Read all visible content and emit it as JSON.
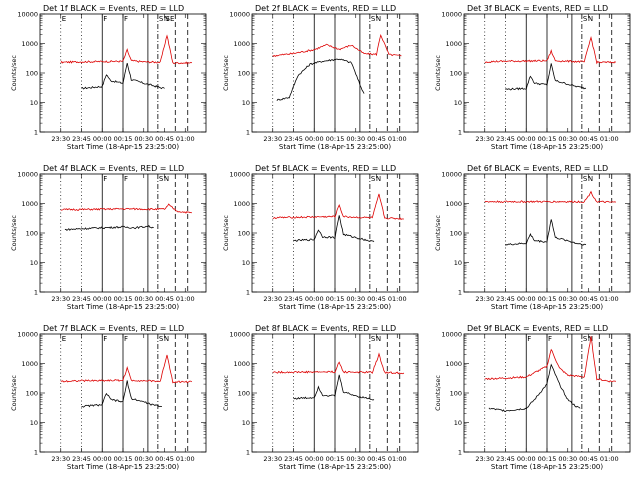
{
  "figure": {
    "xlabel": "Start Time (18-Apr-15 23:25:00)",
    "ylabel": "Counts/sec",
    "x_ticks": [
      "23:30",
      "23:45",
      "00:00",
      "00:15",
      "00:30",
      "00:45",
      "01:00"
    ],
    "y_ticks": [
      "1",
      "10",
      "100",
      "1000",
      "10000"
    ],
    "event_color": "#000000",
    "lld_color": "#dd0000"
  },
  "chart_data": [
    {
      "type": "line",
      "title": "Det 1f BLACK = Events, RED = LLD",
      "ylim": [
        1,
        10000
      ],
      "series": [
        {
          "name": "Events",
          "color": "#000000",
          "t": [
            23.75,
            24.0,
            24.05,
            24.1,
            24.25,
            24.3,
            24.35,
            24.5,
            24.6,
            24.7,
            24.75
          ],
          "values": [
            30,
            35,
            90,
            55,
            45,
            220,
            60,
            45,
            38,
            32,
            30
          ]
        },
        {
          "name": "LLD",
          "color": "#dd0000",
          "t": [
            23.5,
            23.75,
            24.25,
            24.3,
            24.35,
            24.5,
            24.7,
            24.78,
            24.85,
            25.0,
            25.08
          ],
          "values": [
            230,
            240,
            250,
            600,
            260,
            240,
            230,
            1900,
            220,
            220,
            220
          ]
        }
      ],
      "markers": [
        {
          "label": "E",
          "t": 23.5
        },
        {
          "label": "F",
          "t": 24.0
        },
        {
          "label": "F",
          "t": 24.25
        },
        {
          "label": "S",
          "t": 24.67
        },
        {
          "label": "N",
          "t": 24.73
        },
        {
          "label": "SE",
          "t": 24.75
        }
      ]
    },
    {
      "type": "line",
      "title": "Det 2f BLACK = Events, RED = LLD",
      "ylim": [
        1,
        10000
      ],
      "series": [
        {
          "name": "Events",
          "color": "#000000",
          "t": [
            23.55,
            23.7,
            23.8,
            23.95,
            24.1,
            24.3,
            24.45,
            24.55,
            24.6
          ],
          "values": [
            12,
            15,
            80,
            200,
            250,
            300,
            220,
            40,
            20
          ]
        },
        {
          "name": "LLD",
          "color": "#dd0000",
          "t": [
            23.5,
            23.75,
            24.0,
            24.15,
            24.3,
            24.45,
            24.6,
            24.75,
            24.8,
            24.9,
            25.05
          ],
          "values": [
            380,
            460,
            620,
            900,
            640,
            880,
            450,
            430,
            2000,
            420,
            380
          ]
        }
      ],
      "markers": [
        {
          "label": "S",
          "t": 24.67
        },
        {
          "label": "N",
          "t": 24.73
        }
      ]
    },
    {
      "type": "line",
      "title": "Det 3f BLACK = Events, RED = LLD",
      "ylim": [
        1,
        10000
      ],
      "series": [
        {
          "name": "Events",
          "color": "#000000",
          "t": [
            23.75,
            24.0,
            24.05,
            24.1,
            24.25,
            24.3,
            24.35,
            24.5,
            24.6,
            24.72
          ],
          "values": [
            28,
            30,
            80,
            45,
            40,
            200,
            55,
            42,
            35,
            30
          ]
        },
        {
          "name": "LLD",
          "color": "#dd0000",
          "t": [
            23.5,
            23.75,
            24.25,
            24.3,
            24.35,
            24.5,
            24.7,
            24.78,
            24.85,
            25.0,
            25.08
          ],
          "values": [
            240,
            250,
            260,
            550,
            260,
            250,
            240,
            1600,
            230,
            230,
            230
          ]
        }
      ],
      "markers": [
        {
          "label": "S",
          "t": 24.67
        },
        {
          "label": "N",
          "t": 24.73
        }
      ]
    },
    {
      "type": "line",
      "title": "Det 4f BLACK = Events, RED = LLD",
      "ylim": [
        1,
        10000
      ],
      "series": [
        {
          "name": "Events",
          "color": "#000000",
          "t": [
            23.55,
            23.75,
            24.0,
            24.25,
            24.4,
            24.55,
            24.62
          ],
          "values": [
            130,
            140,
            150,
            160,
            150,
            170,
            150
          ]
        },
        {
          "name": "LLD",
          "color": "#dd0000",
          "t": [
            23.5,
            23.75,
            24.0,
            24.25,
            24.5,
            24.75,
            24.8,
            24.9,
            25.08
          ],
          "values": [
            620,
            630,
            640,
            660,
            650,
            640,
            900,
            550,
            480
          ]
        }
      ],
      "markers": [
        {
          "label": "F",
          "t": 24.0
        },
        {
          "label": "F",
          "t": 24.25
        },
        {
          "label": "S",
          "t": 24.67
        },
        {
          "label": "N",
          "t": 24.73
        }
      ]
    },
    {
      "type": "line",
      "title": "Det 5f BLACK = Events, RED = LLD",
      "ylim": [
        1,
        10000
      ],
      "series": [
        {
          "name": "Events",
          "color": "#000000",
          "t": [
            23.75,
            24.0,
            24.05,
            24.1,
            24.25,
            24.3,
            24.35,
            24.5,
            24.6,
            24.72
          ],
          "values": [
            55,
            60,
            130,
            75,
            70,
            400,
            90,
            70,
            60,
            50
          ]
        },
        {
          "name": "LLD",
          "color": "#dd0000",
          "t": [
            23.5,
            23.75,
            24.25,
            24.3,
            24.35,
            24.5,
            24.7,
            24.78,
            24.85,
            25.0,
            25.08
          ],
          "values": [
            330,
            340,
            360,
            900,
            360,
            340,
            330,
            2000,
            320,
            310,
            300
          ]
        }
      ],
      "markers": [
        {
          "label": "S",
          "t": 24.67
        },
        {
          "label": "N",
          "t": 24.73
        }
      ]
    },
    {
      "type": "line",
      "title": "Det 6f BLACK = Events, RED = LLD",
      "ylim": [
        1,
        10000
      ],
      "series": [
        {
          "name": "Events",
          "color": "#000000",
          "t": [
            23.75,
            24.0,
            24.05,
            24.1,
            24.25,
            24.3,
            24.35,
            24.5,
            24.6,
            24.72
          ],
          "values": [
            40,
            45,
            90,
            55,
            50,
            300,
            70,
            55,
            45,
            40
          ]
        },
        {
          "name": "LLD",
          "color": "#dd0000",
          "t": [
            23.5,
            23.75,
            24.25,
            24.5,
            24.7,
            24.78,
            24.85,
            25.0,
            25.08
          ],
          "values": [
            1150,
            1150,
            1150,
            1150,
            1150,
            2400,
            1150,
            1100,
            1100
          ]
        }
      ],
      "markers": [
        {
          "label": "S",
          "t": 24.67
        },
        {
          "label": "N",
          "t": 24.73
        }
      ]
    },
    {
      "type": "line",
      "title": "Det 7f BLACK = Events, RED = LLD",
      "ylim": [
        1,
        10000
      ],
      "series": [
        {
          "name": "Events",
          "color": "#000000",
          "t": [
            23.75,
            24.0,
            24.05,
            24.1,
            24.25,
            24.3,
            24.35,
            24.5,
            24.6,
            24.72
          ],
          "values": [
            35,
            40,
            100,
            60,
            50,
            250,
            65,
            50,
            40,
            35
          ]
        },
        {
          "name": "LLD",
          "color": "#dd0000",
          "t": [
            23.5,
            23.75,
            24.25,
            24.3,
            24.35,
            24.5,
            24.7,
            24.78,
            24.85,
            25.0,
            25.08
          ],
          "values": [
            250,
            260,
            270,
            700,
            270,
            260,
            250,
            2000,
            240,
            240,
            240
          ]
        }
      ],
      "markers": [
        {
          "label": "E",
          "t": 23.5
        },
        {
          "label": "F",
          "t": 24.0
        },
        {
          "label": "F",
          "t": 24.25
        },
        {
          "label": "S",
          "t": 24.67
        },
        {
          "label": "N",
          "t": 24.73
        }
      ]
    },
    {
      "type": "line",
      "title": "Det 8f BLACK = Events, RED = LLD",
      "ylim": [
        1,
        10000
      ],
      "series": [
        {
          "name": "Events",
          "color": "#000000",
          "t": [
            23.75,
            24.0,
            24.05,
            24.1,
            24.25,
            24.3,
            24.35,
            24.5,
            24.6,
            24.72
          ],
          "values": [
            65,
            70,
            160,
            85,
            80,
            400,
            110,
            80,
            70,
            60
          ]
        },
        {
          "name": "LLD",
          "color": "#dd0000",
          "t": [
            23.5,
            23.75,
            24.25,
            24.3,
            24.35,
            24.5,
            24.7,
            24.78,
            24.85,
            25.0,
            25.08
          ],
          "values": [
            500,
            510,
            520,
            1100,
            520,
            510,
            500,
            2000,
            490,
            480,
            480
          ]
        }
      ],
      "markers": [
        {
          "label": "S",
          "t": 24.67
        },
        {
          "label": "N",
          "t": 24.73
        }
      ]
    },
    {
      "type": "line",
      "title": "Det 9f BLACK = Events, RED = LLD",
      "ylim": [
        1,
        10000
      ],
      "series": [
        {
          "name": "Events",
          "color": "#000000",
          "t": [
            23.55,
            23.75,
            24.0,
            24.1,
            24.25,
            24.3,
            24.4,
            24.5,
            24.6,
            24.65
          ],
          "values": [
            30,
            25,
            30,
            60,
            200,
            900,
            200,
            60,
            35,
            30
          ]
        },
        {
          "name": "LLD",
          "color": "#dd0000",
          "t": [
            23.5,
            23.75,
            24.0,
            24.25,
            24.3,
            24.4,
            24.5,
            24.7,
            24.78,
            24.85,
            25.0,
            25.08
          ],
          "values": [
            300,
            320,
            350,
            800,
            3000,
            700,
            400,
            350,
            8000,
            300,
            250,
            250
          ]
        }
      ],
      "markers": [
        {
          "label": "F",
          "t": 24.0
        },
        {
          "label": "F",
          "t": 24.25
        },
        {
          "label": "S",
          "t": 24.67
        },
        {
          "label": "N",
          "t": 24.73
        }
      ]
    }
  ]
}
